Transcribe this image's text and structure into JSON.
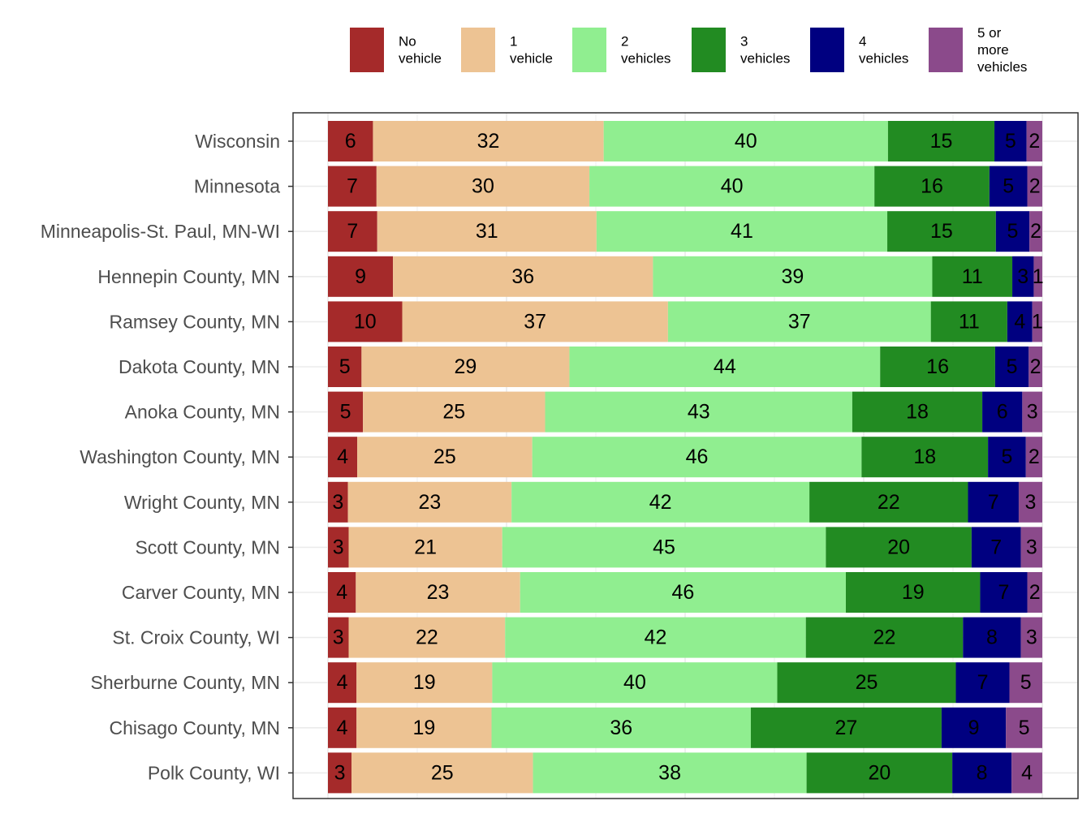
{
  "chart_data": {
    "type": "bar",
    "orientation": "horizontal",
    "stacked": true,
    "normalized": true,
    "title": "",
    "xlabel": "",
    "ylabel": "",
    "xlim": [
      0,
      100
    ],
    "grid": true,
    "legend_position": "top",
    "series": [
      {
        "name": "No vehicle",
        "legend_lines": [
          "No",
          "vehicle"
        ],
        "color": "#a52a2a"
      },
      {
        "name": "1 vehicle",
        "legend_lines": [
          "1",
          "vehicle"
        ],
        "color": "#edc393"
      },
      {
        "name": "2 vehicles",
        "legend_lines": [
          "2",
          "vehicles"
        ],
        "color": "#90ee90"
      },
      {
        "name": "3 vehicles",
        "legend_lines": [
          "3",
          "vehicles"
        ],
        "color": "#228b22"
      },
      {
        "name": "4 vehicles",
        "legend_lines": [
          "4",
          "vehicles"
        ],
        "color": "#000080"
      },
      {
        "name": "5 or more vehicles",
        "legend_lines": [
          "5 or",
          "more",
          "vehicles"
        ],
        "color": "#8b4a8b"
      }
    ],
    "categories": [
      "Wisconsin",
      "Minnesota",
      "Minneapolis-St. Paul, MN-WI",
      "Hennepin County, MN",
      "Ramsey County, MN",
      "Dakota County, MN",
      "Anoka County, MN",
      "Washington County, MN",
      "Wright County, MN",
      "Scott County, MN",
      "Carver County, MN",
      "St. Croix County, WI",
      "Sherburne County, MN",
      "Chisago County, MN",
      "Polk County, WI"
    ],
    "values": [
      [
        6.3,
        32.3,
        39.8,
        14.9,
        4.5,
        2.2
      ],
      [
        6.8,
        29.8,
        39.9,
        16.1,
        5.3,
        2.1
      ],
      [
        6.9,
        30.7,
        40.7,
        15.2,
        4.7,
        1.8
      ],
      [
        9.1,
        36.4,
        39.1,
        11.2,
        3.0,
        1.2
      ],
      [
        10.4,
        37.2,
        36.8,
        10.7,
        3.5,
        1.4
      ],
      [
        4.7,
        29.1,
        43.5,
        16.1,
        4.7,
        1.9
      ],
      [
        4.9,
        25.5,
        43.0,
        18.2,
        5.6,
        2.8
      ],
      [
        4.1,
        24.5,
        46.1,
        17.7,
        5.3,
        2.3
      ],
      [
        2.8,
        22.9,
        41.7,
        22.2,
        7.1,
        3.3
      ],
      [
        2.9,
        21.5,
        45.3,
        20.4,
        6.9,
        3.0
      ],
      [
        3.9,
        23.0,
        45.6,
        18.8,
        6.6,
        2.1
      ],
      [
        2.9,
        21.9,
        42.1,
        22.0,
        8.1,
        3.0
      ],
      [
        4.0,
        19.0,
        39.9,
        25.0,
        7.5,
        4.6
      ],
      [
        4.0,
        18.9,
        36.3,
        26.7,
        9.0,
        5.1
      ],
      [
        3.3,
        25.4,
        38.3,
        20.4,
        8.3,
        4.3
      ]
    ],
    "labels": [
      [
        "6",
        "32",
        "40",
        "15",
        "5",
        "2"
      ],
      [
        "7",
        "30",
        "40",
        "16",
        "5",
        "2"
      ],
      [
        "7",
        "31",
        "41",
        "15",
        "5",
        "2"
      ],
      [
        "9",
        "36",
        "39",
        "11",
        "3",
        "1"
      ],
      [
        "10",
        "37",
        "37",
        "11",
        "4",
        "1"
      ],
      [
        "5",
        "29",
        "44",
        "16",
        "5",
        "2"
      ],
      [
        "5",
        "25",
        "43",
        "18",
        "6",
        "3"
      ],
      [
        "4",
        "25",
        "46",
        "18",
        "5",
        "2"
      ],
      [
        "3",
        "23",
        "42",
        "22",
        "7",
        "3"
      ],
      [
        "3",
        "21",
        "45",
        "20",
        "7",
        "3"
      ],
      [
        "4",
        "23",
        "46",
        "19",
        "7",
        "2"
      ],
      [
        "3",
        "22",
        "42",
        "22",
        "8",
        "3"
      ],
      [
        "4",
        "19",
        "40",
        "25",
        "7",
        "5"
      ],
      [
        "4",
        "19",
        "36",
        "27",
        "9",
        "5"
      ],
      [
        "3",
        "25",
        "38",
        "20",
        "8",
        "4"
      ]
    ]
  }
}
